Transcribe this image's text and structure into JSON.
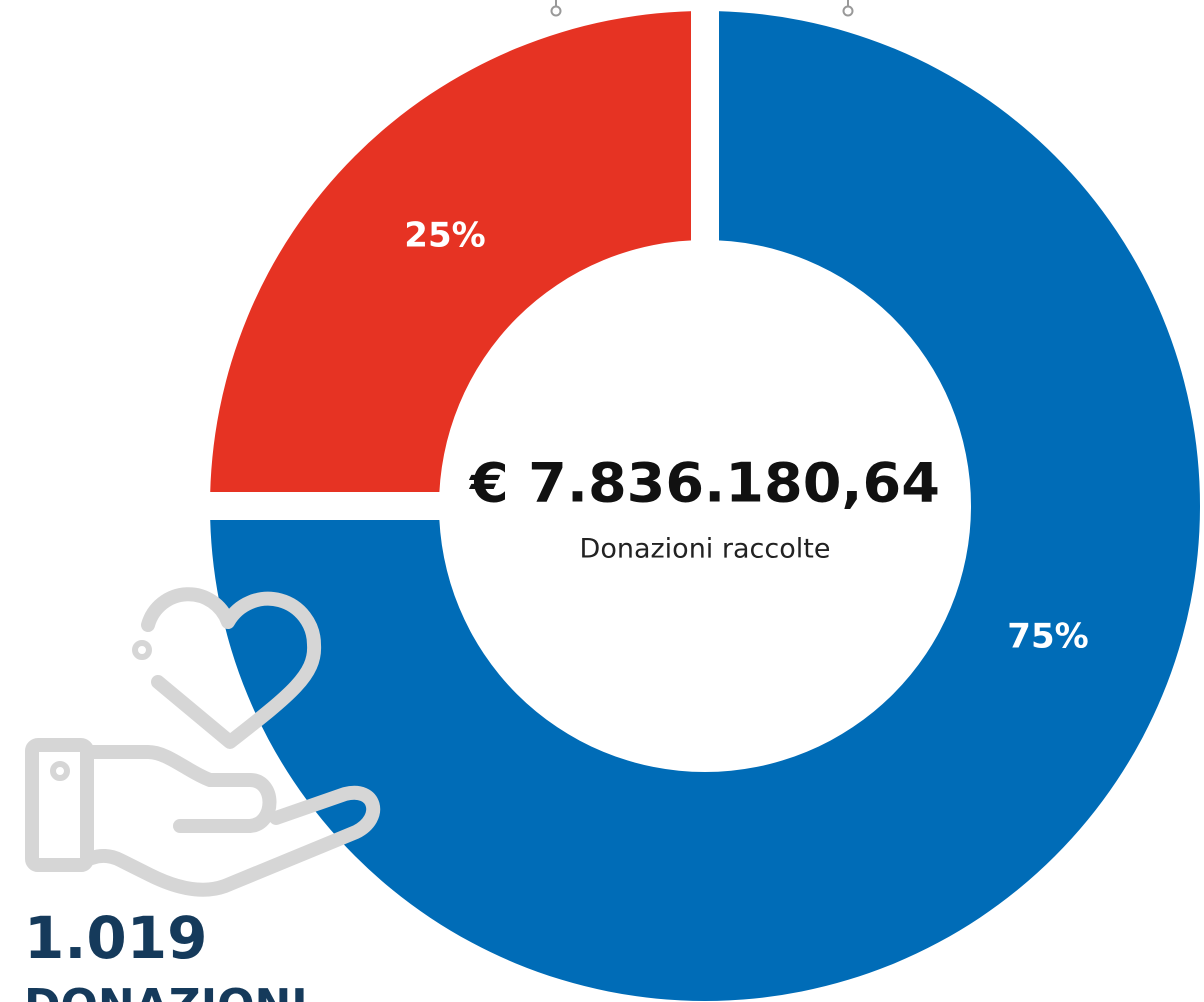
{
  "chart_data": {
    "type": "pie",
    "values": [
      25,
      75
    ],
    "value_labels": [
      "25%",
      "75%"
    ],
    "colors": [
      "#e63323",
      "#006cb7"
    ],
    "center_value": "€ 7.836.180,64",
    "center_label": "Donazioni raccolte"
  },
  "stats": {
    "count": "1.019",
    "label": "DONAZIONI"
  }
}
